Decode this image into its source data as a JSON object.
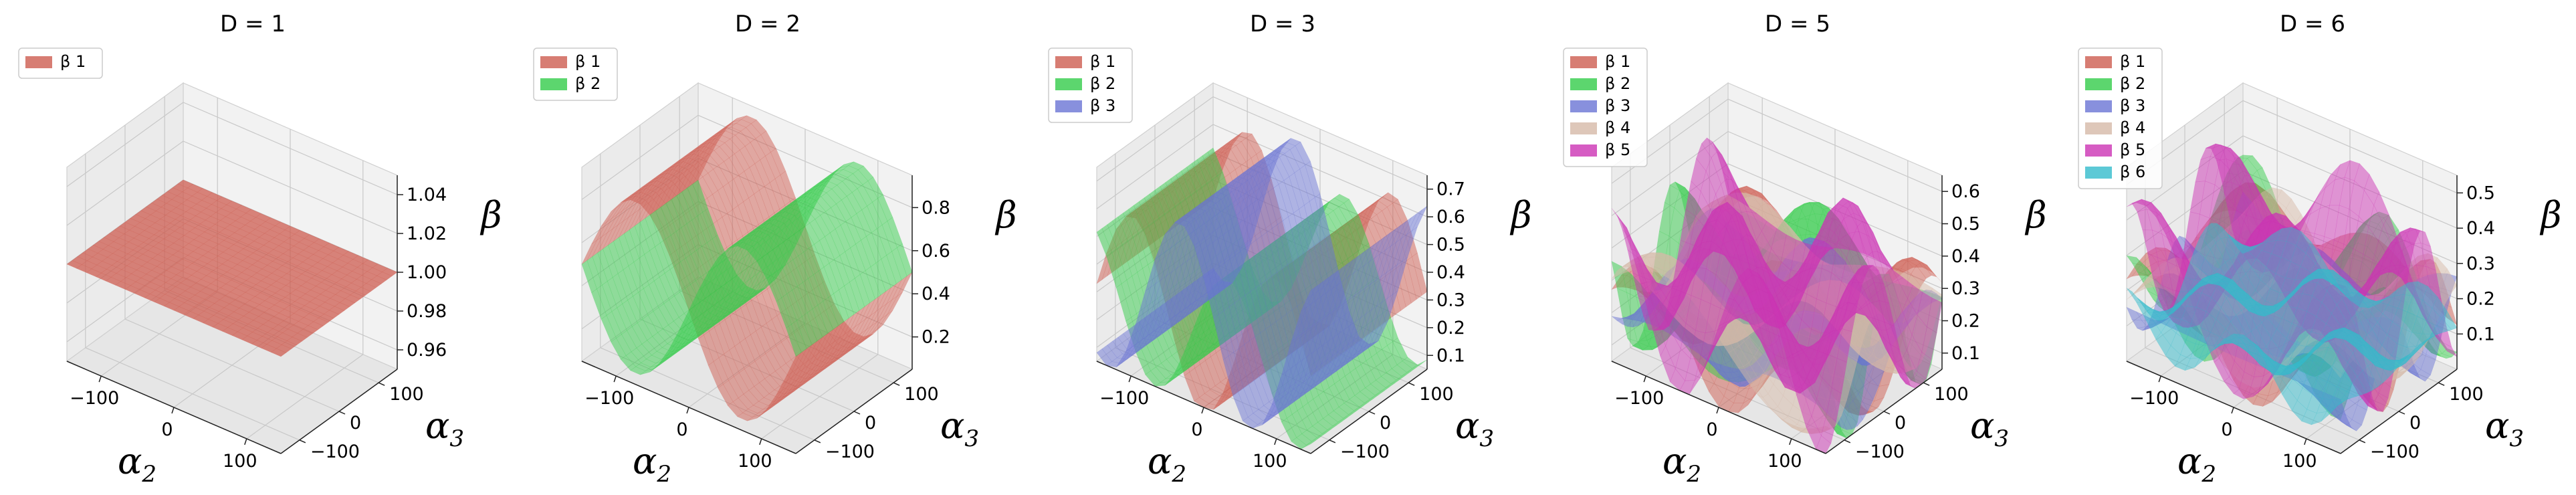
{
  "chart_data": [
    {
      "type": "surface3d",
      "title": "D = 1",
      "xlabel": "α2",
      "ylabel": "α3",
      "zlabel": "β",
      "xticks": [
        "−100",
        "0",
        "100"
      ],
      "yticks": [
        "−100",
        "0",
        "100"
      ],
      "zticks": [
        "0.96",
        "0.98",
        "1.00",
        "1.02",
        "1.04"
      ],
      "zlim": [
        0.95,
        1.05
      ],
      "legend_position": "top-left",
      "series": [
        {
          "name": "β 1",
          "color": "#cd5c50",
          "constant": 1.0
        }
      ]
    },
    {
      "type": "surface3d",
      "title": "D = 2",
      "xlabel": "α2",
      "ylabel": "α3",
      "zlabel": "β",
      "xticks": [
        "−100",
        "0",
        "100"
      ],
      "yticks": [
        "−100",
        "0",
        "100"
      ],
      "zticks": [
        "0.2",
        "0.4",
        "0.6",
        "0.8"
      ],
      "zlim": [
        0.05,
        0.95
      ],
      "legend_position": "top-left",
      "series": [
        {
          "name": "β 1",
          "color": "#cd5c50",
          "mean": 0.5,
          "amp": 0.4,
          "freq_x": 1,
          "freq_y": 0,
          "phase": 0
        },
        {
          "name": "β 2",
          "color": "#33cc4a",
          "mean": 0.5,
          "amp": -0.4,
          "freq_x": 1,
          "freq_y": 0,
          "phase": 0
        }
      ]
    },
    {
      "type": "surface3d",
      "title": "D = 3",
      "xlabel": "α2",
      "ylabel": "α3",
      "zlabel": "β",
      "xticks": [
        "−100",
        "0",
        "100"
      ],
      "yticks": [
        "−100",
        "0",
        "100"
      ],
      "zticks": [
        "0.1",
        "0.2",
        "0.3",
        "0.4",
        "0.5",
        "0.6",
        "0.7"
      ],
      "zlim": [
        0.05,
        0.75
      ],
      "legend_position": "top-left",
      "series": [
        {
          "name": "β 1",
          "color": "#cd5c50",
          "mean": 0.33,
          "amp": 0.3,
          "freq_x": 1.5,
          "freq_y": 0,
          "phase": 0
        },
        {
          "name": "β 2",
          "color": "#33cc4a",
          "mean": 0.3,
          "amp": 0.25,
          "freq_x": 1.5,
          "freq_y": 0,
          "phase": 2.1
        },
        {
          "name": "β 3",
          "color": "#6a74d4",
          "mean": 0.36,
          "amp": 0.32,
          "freq_x": 1.5,
          "freq_y": 0,
          "phase": 4.2
        }
      ]
    },
    {
      "type": "surface3d",
      "title": "D = 5",
      "xlabel": "α2",
      "ylabel": "α3",
      "zlabel": "β",
      "xticks": [
        "−100",
        "0",
        "100"
      ],
      "yticks": [
        "−100",
        "0",
        "100"
      ],
      "zticks": [
        "0.1",
        "0.2",
        "0.3",
        "0.4",
        "0.5",
        "0.6"
      ],
      "zlim": [
        0.05,
        0.65
      ],
      "legend_position": "top-left",
      "series": [
        {
          "name": "β 1",
          "color": "#cd5c50",
          "mean": 0.22,
          "amp": 0.18,
          "freq_x": 1.3,
          "freq_y": 1.1,
          "phase": 0.3
        },
        {
          "name": "β 2",
          "color": "#33cc4a",
          "mean": 0.25,
          "amp": 0.22,
          "freq_x": 1.0,
          "freq_y": 1.6,
          "phase": 1.5
        },
        {
          "name": "β 3",
          "color": "#6a74d4",
          "mean": 0.2,
          "amp": 0.15,
          "freq_x": 1.8,
          "freq_y": 0.9,
          "phase": 2.4
        },
        {
          "name": "β 4",
          "color": "#d6b9a8",
          "mean": 0.24,
          "amp": 0.18,
          "freq_x": 0.8,
          "freq_y": 1.4,
          "phase": 3.6
        },
        {
          "name": "β 5",
          "color": "#cc33b4",
          "mean": 0.28,
          "amp": 0.25,
          "freq_x": 1.5,
          "freq_y": 1.2,
          "phase": 4.8
        }
      ]
    },
    {
      "type": "surface3d",
      "title": "D = 6",
      "xlabel": "α2",
      "ylabel": "α3",
      "zlabel": "β",
      "xticks": [
        "−100",
        "0",
        "100"
      ],
      "yticks": [
        "−100",
        "0",
        "100"
      ],
      "zticks": [
        "0.1",
        "0.2",
        "0.3",
        "0.4",
        "0.5"
      ],
      "zlim": [
        0.0,
        0.55
      ],
      "legend_position": "top-left",
      "series": [
        {
          "name": "β 1",
          "color": "#cd5c50",
          "mean": 0.2,
          "amp": 0.17,
          "freq_x": 1.2,
          "freq_y": 1.3,
          "phase": 0.2
        },
        {
          "name": "β 2",
          "color": "#33cc4a",
          "mean": 0.2,
          "amp": 0.16,
          "freq_x": 1.6,
          "freq_y": 0.9,
          "phase": 1.2
        },
        {
          "name": "β 3",
          "color": "#6a74d4",
          "mean": 0.15,
          "amp": 0.12,
          "freq_x": 0.9,
          "freq_y": 1.7,
          "phase": 2.2
        },
        {
          "name": "β 4",
          "color": "#d6b9a8",
          "mean": 0.17,
          "amp": 0.13,
          "freq_x": 1.4,
          "freq_y": 1.1,
          "phase": 3.2
        },
        {
          "name": "β 5",
          "color": "#cc33b4",
          "mean": 0.25,
          "amp": 0.22,
          "freq_x": 1.1,
          "freq_y": 1.5,
          "phase": 4.2
        },
        {
          "name": "β 6",
          "color": "#33bccc",
          "mean": 0.13,
          "amp": 0.1,
          "freq_x": 1.7,
          "freq_y": 1.3,
          "phase": 5.2
        }
      ]
    }
  ]
}
